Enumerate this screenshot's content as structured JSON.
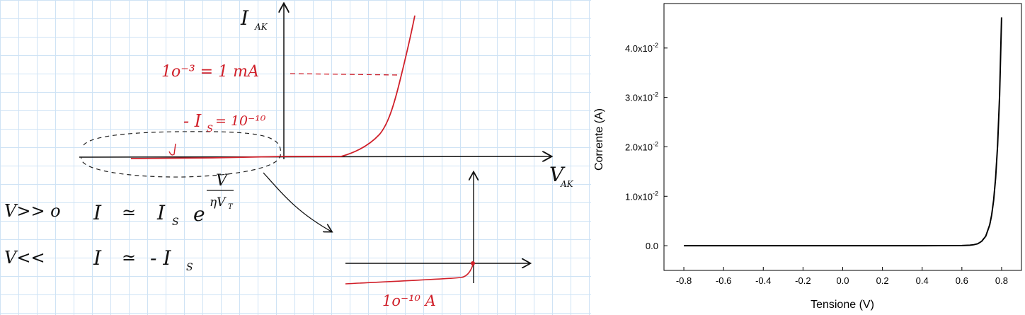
{
  "notes": {
    "y_axis_label": "I",
    "y_axis_sub": "AK",
    "x_axis_label": "V",
    "x_axis_sub": "AK",
    "annotation_ma": "1o⁻³ = 1 mA",
    "annotation_is": "- I",
    "annotation_is_sub": "S",
    "annotation_is_value": "= 10⁻¹⁰",
    "exp_num": "V",
    "exp_den": "ηV",
    "exp_den_sub": "T",
    "eq1_condition": "V>> o",
    "eq1_lhs": "I",
    "eq1_approx": "≃",
    "eq1_rhs": "I",
    "eq1_rhs_sub": "S",
    "eq1_e": "e",
    "eq2_condition": "V<<",
    "eq2_lhs": "I",
    "eq2_approx": "≃",
    "eq2_rhs": "- I",
    "eq2_rhs_sub": "S",
    "inset_annotation": "1o⁻¹⁰ A",
    "ink_color": "#d0202a",
    "pen_color": "#111111"
  },
  "chart_data": {
    "type": "line",
    "title": "",
    "xlabel": "Tensione (V)",
    "ylabel": "Corrente (A)",
    "xlim": [
      -0.9,
      0.9
    ],
    "ylim": [
      -0.005,
      0.049
    ],
    "x_ticks": [
      "-0.8",
      "-0.6",
      "-0.4",
      "-0.2",
      "0.0",
      "0.2",
      "0.4",
      "0.6",
      "0.8"
    ],
    "x_tick_values": [
      -0.8,
      -0.6,
      -0.4,
      -0.2,
      0.0,
      0.2,
      0.4,
      0.6,
      0.8
    ],
    "y_ticks": [
      {
        "mantissa": "0.0",
        "exp": ""
      },
      {
        "mantissa": "1.0x10",
        "exp": "-2"
      },
      {
        "mantissa": "2.0x10",
        "exp": "-2"
      },
      {
        "mantissa": "3.0x10",
        "exp": "-2"
      },
      {
        "mantissa": "4.0x10",
        "exp": "-2"
      }
    ],
    "y_tick_values": [
      0.0,
      0.01,
      0.02,
      0.03,
      0.04
    ],
    "series": [
      {
        "x": [
          -0.8,
          -0.6,
          -0.4,
          -0.2,
          0.0,
          0.2,
          0.4,
          0.6,
          0.64,
          0.66,
          0.68,
          0.7,
          0.72,
          0.74,
          0.75,
          0.76,
          0.77,
          0.78,
          0.79,
          0.8
        ],
        "y": [
          0.0,
          0.0,
          0.0,
          0.0,
          0.0,
          0.0,
          0.0,
          3e-05,
          0.0001,
          0.0002,
          0.0004,
          0.0009,
          0.0019,
          0.0042,
          0.0062,
          0.0092,
          0.0137,
          0.0203,
          0.0303,
          0.0462
        ]
      }
    ],
    "line_color": "#000000",
    "grid": false
  }
}
